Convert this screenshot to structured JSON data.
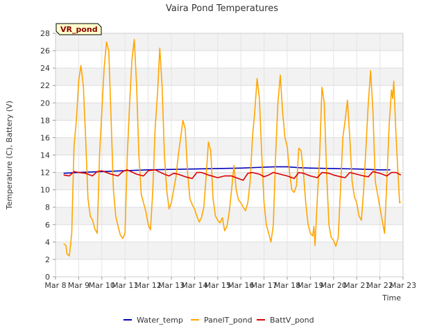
{
  "chart_data": {
    "type": "line",
    "title": "Vaira Pond Temperatures",
    "xlabel": "Time",
    "ylabel": "Temperature (C), Battery (V)",
    "station_tag": "VR_pond",
    "xlim": [
      8,
      23
    ],
    "ylim": [
      0,
      28
    ],
    "x_ticks": [
      {
        "value": 8,
        "label": "Mar 8"
      },
      {
        "value": 9,
        "label": "Mar 9"
      },
      {
        "value": 10,
        "label": "Mar 10"
      },
      {
        "value": 11,
        "label": "Mar 11"
      },
      {
        "value": 12,
        "label": "Mar 12"
      },
      {
        "value": 13,
        "label": "Mar 13"
      },
      {
        "value": 14,
        "label": "Mar 14"
      },
      {
        "value": 15,
        "label": "Mar 15"
      },
      {
        "value": 16,
        "label": "Mar 16"
      },
      {
        "value": 17,
        "label": "Mar 17"
      },
      {
        "value": 18,
        "label": "Mar 18"
      },
      {
        "value": 19,
        "label": "Mar 19"
      },
      {
        "value": 20,
        "label": "Mar 20"
      },
      {
        "value": 21,
        "label": "Mar 21"
      },
      {
        "value": 22,
        "label": "Mar 22"
      },
      {
        "value": 23,
        "label": "Mar 23"
      }
    ],
    "y_ticks": [
      0,
      2,
      4,
      6,
      8,
      10,
      12,
      14,
      16,
      18,
      20,
      22,
      24,
      26,
      28
    ],
    "grid": true,
    "legend_position": "bottom",
    "series": [
      {
        "name": "Water_temp",
        "color": "#0000bb",
        "points": [
          [
            8.35,
            11.9
          ],
          [
            9.0,
            12.0
          ],
          [
            10.0,
            12.1
          ],
          [
            11.0,
            12.2
          ],
          [
            12.0,
            12.3
          ],
          [
            13.0,
            12.35
          ],
          [
            14.0,
            12.4
          ],
          [
            15.0,
            12.45
          ],
          [
            16.0,
            12.5
          ],
          [
            17.0,
            12.6
          ],
          [
            17.5,
            12.65
          ],
          [
            18.0,
            12.65
          ],
          [
            18.5,
            12.55
          ],
          [
            19.0,
            12.5
          ],
          [
            20.0,
            12.45
          ],
          [
            21.0,
            12.4
          ],
          [
            22.0,
            12.3
          ],
          [
            22.45,
            12.3
          ]
        ]
      },
      {
        "name": "PanelT_pond",
        "color": "#ffa500",
        "points": [
          [
            8.35,
            3.8
          ],
          [
            8.45,
            3.6
          ],
          [
            8.5,
            2.6
          ],
          [
            8.6,
            2.4
          ],
          [
            8.7,
            5.0
          ],
          [
            8.8,
            15.0
          ],
          [
            8.9,
            18.0
          ],
          [
            9.0,
            22.5
          ],
          [
            9.1,
            24.3
          ],
          [
            9.2,
            22.0
          ],
          [
            9.3,
            16.0
          ],
          [
            9.4,
            9.0
          ],
          [
            9.5,
            7.0
          ],
          [
            9.6,
            6.5
          ],
          [
            9.7,
            5.5
          ],
          [
            9.8,
            5.0
          ],
          [
            9.9,
            14.0
          ],
          [
            10.0,
            19.0
          ],
          [
            10.1,
            24.0
          ],
          [
            10.2,
            27.0
          ],
          [
            10.3,
            26.0
          ],
          [
            10.4,
            18.0
          ],
          [
            10.5,
            10.0
          ],
          [
            10.6,
            7.0
          ],
          [
            10.7,
            5.8
          ],
          [
            10.8,
            4.8
          ],
          [
            10.9,
            4.4
          ],
          [
            11.0,
            5.0
          ],
          [
            11.1,
            14.0
          ],
          [
            11.2,
            20.0
          ],
          [
            11.3,
            25.0
          ],
          [
            11.4,
            27.3
          ],
          [
            11.5,
            22.0
          ],
          [
            11.6,
            14.0
          ],
          [
            11.7,
            9.5
          ],
          [
            11.8,
            8.5
          ],
          [
            11.9,
            7.5
          ],
          [
            12.0,
            6.0
          ],
          [
            12.1,
            5.4
          ],
          [
            12.2,
            10.0
          ],
          [
            12.3,
            17.0
          ],
          [
            12.4,
            21.0
          ],
          [
            12.5,
            26.3
          ],
          [
            12.6,
            22.0
          ],
          [
            12.7,
            14.0
          ],
          [
            12.8,
            10.0
          ],
          [
            12.9,
            7.8
          ],
          [
            13.0,
            8.5
          ],
          [
            13.1,
            10.0
          ],
          [
            13.2,
            11.5
          ],
          [
            13.3,
            14.0
          ],
          [
            13.4,
            16.0
          ],
          [
            13.5,
            18.0
          ],
          [
            13.6,
            17.0
          ],
          [
            13.7,
            12.0
          ],
          [
            13.8,
            9.0
          ],
          [
            13.9,
            8.3
          ],
          [
            14.0,
            7.8
          ],
          [
            14.1,
            7.0
          ],
          [
            14.2,
            6.3
          ],
          [
            14.3,
            6.8
          ],
          [
            14.4,
            8.0
          ],
          [
            14.5,
            11.5
          ],
          [
            14.6,
            15.5
          ],
          [
            14.7,
            14.5
          ],
          [
            14.8,
            9.0
          ],
          [
            14.9,
            7.0
          ],
          [
            15.0,
            6.5
          ],
          [
            15.1,
            6.2
          ],
          [
            15.2,
            6.8
          ],
          [
            15.3,
            5.3
          ],
          [
            15.4,
            5.8
          ],
          [
            15.5,
            7.5
          ],
          [
            15.6,
            10.0
          ],
          [
            15.7,
            12.8
          ],
          [
            15.8,
            10.0
          ],
          [
            15.9,
            8.8
          ],
          [
            16.0,
            8.5
          ],
          [
            16.1,
            8.0
          ],
          [
            16.2,
            7.6
          ],
          [
            16.3,
            8.5
          ],
          [
            16.4,
            11.0
          ],
          [
            16.5,
            16.0
          ],
          [
            16.6,
            19.0
          ],
          [
            16.7,
            22.8
          ],
          [
            16.8,
            20.5
          ],
          [
            16.9,
            14.0
          ],
          [
            17.0,
            8.5
          ],
          [
            17.1,
            6.0
          ],
          [
            17.2,
            5.0
          ],
          [
            17.3,
            4.0
          ],
          [
            17.4,
            6.0
          ],
          [
            17.5,
            14.0
          ],
          [
            17.6,
            20.0
          ],
          [
            17.7,
            23.2
          ],
          [
            17.8,
            19.0
          ],
          [
            17.9,
            16.0
          ],
          [
            18.0,
            15.0
          ],
          [
            18.1,
            12.0
          ],
          [
            18.2,
            10.0
          ],
          [
            18.3,
            9.7
          ],
          [
            18.4,
            10.5
          ],
          [
            18.5,
            14.8
          ],
          [
            18.6,
            14.5
          ],
          [
            18.7,
            12.0
          ],
          [
            18.8,
            8.5
          ],
          [
            18.9,
            6.0
          ],
          [
            19.0,
            5.0
          ],
          [
            19.1,
            4.7
          ],
          [
            19.15,
            5.8
          ],
          [
            19.2,
            3.6
          ],
          [
            19.3,
            9.0
          ],
          [
            19.4,
            14.0
          ],
          [
            19.5,
            21.8
          ],
          [
            19.6,
            20.0
          ],
          [
            19.7,
            12.0
          ],
          [
            19.8,
            6.0
          ],
          [
            19.9,
            4.5
          ],
          [
            20.0,
            4.2
          ],
          [
            20.1,
            3.5
          ],
          [
            20.2,
            4.5
          ],
          [
            20.3,
            10.0
          ],
          [
            20.4,
            16.0
          ],
          [
            20.5,
            18.0
          ],
          [
            20.6,
            20.3
          ],
          [
            20.7,
            16.0
          ],
          [
            20.8,
            11.0
          ],
          [
            20.9,
            9.2
          ],
          [
            21.0,
            8.5
          ],
          [
            21.1,
            7.0
          ],
          [
            21.2,
            6.5
          ],
          [
            21.3,
            10.0
          ],
          [
            21.4,
            15.0
          ],
          [
            21.5,
            20.0
          ],
          [
            21.6,
            23.7
          ],
          [
            21.7,
            19.0
          ],
          [
            21.8,
            11.0
          ],
          [
            21.9,
            9.5
          ],
          [
            22.0,
            8.0
          ],
          [
            22.1,
            6.5
          ],
          [
            22.2,
            5.0
          ],
          [
            22.3,
            11.0
          ],
          [
            22.4,
            17.5
          ],
          [
            22.5,
            21.5
          ],
          [
            22.55,
            20.5
          ],
          [
            22.6,
            22.5
          ],
          [
            22.7,
            16.0
          ],
          [
            22.8,
            11.0
          ],
          [
            22.85,
            8.5
          ],
          [
            22.9,
            8.6
          ]
        ]
      },
      {
        "name": "BattV_pond",
        "color": "#dd0000",
        "points": [
          [
            8.35,
            11.7
          ],
          [
            8.6,
            11.6
          ],
          [
            8.8,
            12.1
          ],
          [
            9.0,
            12.0
          ],
          [
            9.3,
            11.9
          ],
          [
            9.6,
            11.6
          ],
          [
            9.8,
            12.1
          ],
          [
            10.0,
            12.2
          ],
          [
            10.4,
            11.8
          ],
          [
            10.7,
            11.6
          ],
          [
            10.9,
            12.1
          ],
          [
            11.1,
            12.3
          ],
          [
            11.5,
            11.8
          ],
          [
            11.8,
            11.6
          ],
          [
            12.0,
            12.2
          ],
          [
            12.3,
            12.3
          ],
          [
            12.7,
            11.8
          ],
          [
            12.9,
            11.6
          ],
          [
            13.1,
            11.9
          ],
          [
            13.3,
            11.8
          ],
          [
            13.6,
            11.5
          ],
          [
            13.9,
            11.3
          ],
          [
            14.1,
            12.0
          ],
          [
            14.3,
            12.0
          ],
          [
            14.6,
            11.7
          ],
          [
            15.0,
            11.4
          ],
          [
            15.3,
            11.6
          ],
          [
            15.6,
            11.6
          ],
          [
            15.8,
            11.4
          ],
          [
            16.1,
            11.1
          ],
          [
            16.3,
            11.9
          ],
          [
            16.5,
            12.0
          ],
          [
            16.8,
            11.8
          ],
          [
            17.0,
            11.5
          ],
          [
            17.2,
            11.7
          ],
          [
            17.4,
            12.0
          ],
          [
            17.7,
            11.8
          ],
          [
            18.0,
            11.6
          ],
          [
            18.3,
            11.3
          ],
          [
            18.5,
            12.0
          ],
          [
            18.7,
            11.9
          ],
          [
            19.0,
            11.6
          ],
          [
            19.3,
            11.4
          ],
          [
            19.5,
            12.0
          ],
          [
            19.8,
            11.9
          ],
          [
            20.0,
            11.7
          ],
          [
            20.3,
            11.5
          ],
          [
            20.5,
            11.4
          ],
          [
            20.7,
            12.0
          ],
          [
            21.0,
            11.8
          ],
          [
            21.3,
            11.6
          ],
          [
            21.5,
            11.5
          ],
          [
            21.7,
            12.1
          ],
          [
            22.0,
            11.9
          ],
          [
            22.3,
            11.6
          ],
          [
            22.5,
            12.0
          ],
          [
            22.7,
            12.0
          ],
          [
            22.9,
            11.7
          ]
        ]
      }
    ]
  }
}
